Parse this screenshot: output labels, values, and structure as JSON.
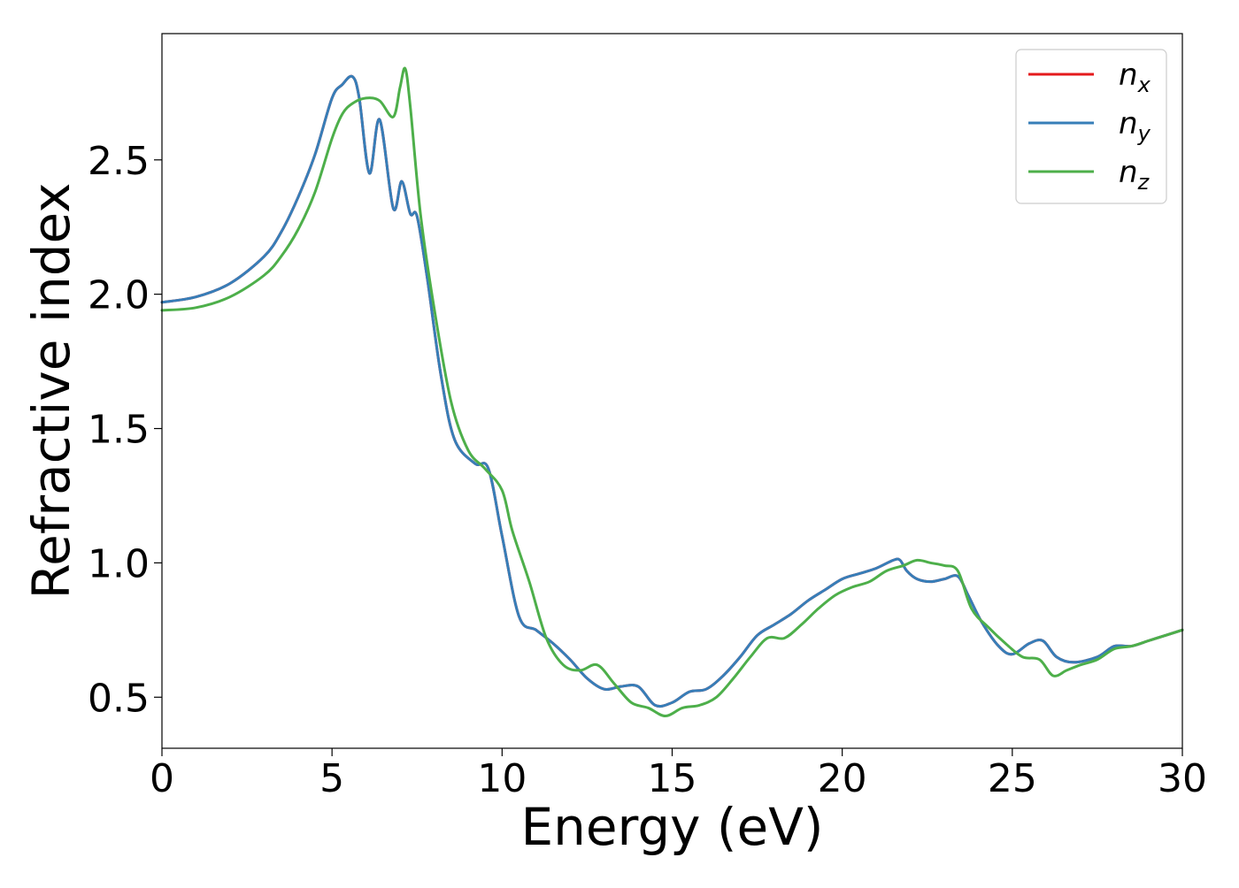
{
  "chart_data": {
    "type": "line",
    "xlabel": "Energy (eV)",
    "ylabel": "Refractive index",
    "xlim": [
      0,
      30
    ],
    "ylim": [
      0.31,
      2.97
    ],
    "x_ticks": [
      0,
      5,
      10,
      15,
      20,
      25,
      30
    ],
    "x_tick_labels": [
      "0",
      "5",
      "10",
      "15",
      "20",
      "25",
      "30"
    ],
    "y_ticks": [
      0.5,
      1.0,
      1.5,
      2.0,
      2.5
    ],
    "y_tick_labels": [
      "0.5",
      "1.0",
      "1.5",
      "2.0",
      "2.5"
    ],
    "grid": false,
    "legend_position": "top-right",
    "series": [
      {
        "name": "n_x",
        "legend_base": "n",
        "legend_sub": "x",
        "color": "#e41a1c",
        "x": [
          0,
          1,
          2,
          3,
          3.5,
          4,
          4.5,
          5,
          5.3,
          5.6,
          5.8,
          6.1,
          6.4,
          6.8,
          7.05,
          7.3,
          7.5,
          7.8,
          8.2,
          8.6,
          9.2,
          9.6,
          10,
          10.5,
          11,
          11.5,
          12,
          12.5,
          13,
          13.5,
          14,
          14.5,
          15,
          15.5,
          16,
          16.5,
          17,
          17.5,
          18,
          18.5,
          19,
          19.5,
          20,
          20.5,
          21,
          21.5,
          21.7,
          21.9,
          22.2,
          22.6,
          23,
          23.4,
          23.7,
          24.1,
          24.6,
          25,
          25.5,
          25.9,
          26.3,
          26.8,
          27.5,
          28,
          28.5,
          29,
          29.5,
          30
        ],
        "y": [
          1.97,
          1.99,
          2.04,
          2.14,
          2.23,
          2.36,
          2.52,
          2.73,
          2.78,
          2.81,
          2.73,
          2.45,
          2.65,
          2.32,
          2.42,
          2.3,
          2.29,
          2.06,
          1.7,
          1.46,
          1.37,
          1.35,
          1.1,
          0.8,
          0.75,
          0.7,
          0.64,
          0.57,
          0.53,
          0.54,
          0.54,
          0.47,
          0.48,
          0.52,
          0.53,
          0.58,
          0.65,
          0.73,
          0.77,
          0.81,
          0.86,
          0.9,
          0.94,
          0.96,
          0.98,
          1.01,
          1.01,
          0.97,
          0.94,
          0.93,
          0.94,
          0.95,
          0.88,
          0.78,
          0.69,
          0.66,
          0.7,
          0.71,
          0.65,
          0.63,
          0.65,
          0.69,
          0.69,
          0.71,
          0.73,
          0.75
        ]
      },
      {
        "name": "n_y",
        "legend_base": "n",
        "legend_sub": "y",
        "color": "#377eb8",
        "x": [
          0,
          1,
          2,
          3,
          3.5,
          4,
          4.5,
          5,
          5.3,
          5.6,
          5.8,
          6.1,
          6.4,
          6.8,
          7.05,
          7.3,
          7.5,
          7.8,
          8.2,
          8.6,
          9.2,
          9.6,
          10,
          10.5,
          11,
          11.5,
          12,
          12.5,
          13,
          13.5,
          14,
          14.5,
          15,
          15.5,
          16,
          16.5,
          17,
          17.5,
          18,
          18.5,
          19,
          19.5,
          20,
          20.5,
          21,
          21.5,
          21.7,
          21.9,
          22.2,
          22.6,
          23,
          23.4,
          23.7,
          24.1,
          24.6,
          25,
          25.5,
          25.9,
          26.3,
          26.8,
          27.5,
          28,
          28.5,
          29,
          29.5,
          30
        ],
        "y": [
          1.97,
          1.99,
          2.04,
          2.14,
          2.23,
          2.36,
          2.52,
          2.73,
          2.78,
          2.81,
          2.73,
          2.45,
          2.65,
          2.32,
          2.42,
          2.3,
          2.29,
          2.06,
          1.7,
          1.46,
          1.37,
          1.35,
          1.1,
          0.8,
          0.75,
          0.7,
          0.64,
          0.57,
          0.53,
          0.54,
          0.54,
          0.47,
          0.48,
          0.52,
          0.53,
          0.58,
          0.65,
          0.73,
          0.77,
          0.81,
          0.86,
          0.9,
          0.94,
          0.96,
          0.98,
          1.01,
          1.01,
          0.97,
          0.94,
          0.93,
          0.94,
          0.95,
          0.88,
          0.78,
          0.69,
          0.66,
          0.7,
          0.71,
          0.65,
          0.63,
          0.65,
          0.69,
          0.69,
          0.71,
          0.73,
          0.75
        ]
      },
      {
        "name": "n_z",
        "legend_base": "n",
        "legend_sub": "z",
        "color": "#4daf4a",
        "x": [
          0,
          1,
          2,
          3,
          3.5,
          4,
          4.5,
          5,
          5.3,
          5.6,
          6.0,
          6.4,
          6.8,
          7.0,
          7.15,
          7.3,
          7.6,
          8.0,
          8.5,
          9.0,
          9.5,
          10,
          10.3,
          10.8,
          11.3,
          11.8,
          12.3,
          12.8,
          13.3,
          13.8,
          14.3,
          14.8,
          15.3,
          15.8,
          16.3,
          16.8,
          17.3,
          17.8,
          18.3,
          18.8,
          19.3,
          19.8,
          20.3,
          20.8,
          21.3,
          21.8,
          22.2,
          22.6,
          23.0,
          23.4,
          23.8,
          24.3,
          24.8,
          25.3,
          25.8,
          26.2,
          26.6,
          27.0,
          27.5,
          28,
          28.5,
          29,
          29.5,
          30
        ],
        "y": [
          1.94,
          1.95,
          1.99,
          2.07,
          2.14,
          2.24,
          2.38,
          2.58,
          2.67,
          2.71,
          2.73,
          2.72,
          2.66,
          2.77,
          2.84,
          2.7,
          2.3,
          1.95,
          1.6,
          1.42,
          1.35,
          1.27,
          1.12,
          0.93,
          0.72,
          0.62,
          0.6,
          0.62,
          0.55,
          0.48,
          0.46,
          0.43,
          0.46,
          0.47,
          0.5,
          0.57,
          0.65,
          0.72,
          0.72,
          0.77,
          0.83,
          0.88,
          0.91,
          0.93,
          0.97,
          0.99,
          1.01,
          1.0,
          0.99,
          0.97,
          0.83,
          0.76,
          0.7,
          0.65,
          0.64,
          0.58,
          0.6,
          0.62,
          0.64,
          0.68,
          0.69,
          0.71,
          0.73,
          0.75
        ]
      }
    ]
  }
}
